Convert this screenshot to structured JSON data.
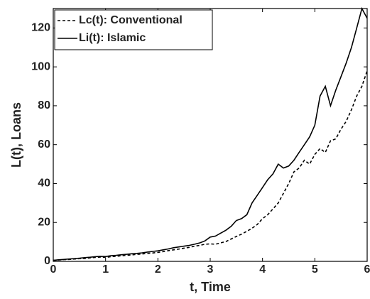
{
  "chart_data": {
    "type": "line",
    "xlabel": "t, Time",
    "ylabel": "L(t), Loans",
    "x": [
      0,
      0.1,
      0.2,
      0.3,
      0.4,
      0.5,
      0.6,
      0.7,
      0.8,
      0.9,
      1,
      1.1,
      1.2,
      1.3,
      1.4,
      1.5,
      1.6,
      1.7,
      1.8,
      1.9,
      2,
      2.1,
      2.2,
      2.3,
      2.4,
      2.5,
      2.6,
      2.7,
      2.8,
      2.9,
      3,
      3.1,
      3.2,
      3.3,
      3.4,
      3.5,
      3.6,
      3.7,
      3.8,
      3.9,
      4,
      4.1,
      4.2,
      4.3,
      4.4,
      4.5,
      4.6,
      4.7,
      4.8,
      4.9,
      5,
      5.1,
      5.2,
      5.3,
      5.4,
      5.5,
      5.6,
      5.7,
      5.8,
      5.9,
      6
    ],
    "series": [
      {
        "name": "Lc(t): Conventional",
        "color": "#000000",
        "dashed": true,
        "values": [
          0.5,
          0.7,
          0.9,
          1.0,
          1.2,
          1.4,
          1.5,
          1.8,
          2.0,
          2.2,
          2.0,
          2.4,
          2.6,
          2.9,
          3.1,
          3.3,
          3.6,
          3.8,
          4.1,
          4.3,
          4.6,
          5.0,
          5.5,
          5.9,
          6.3,
          6.8,
          7.2,
          7.8,
          8.2,
          8.8,
          9.0,
          8.8,
          9.5,
          10.2,
          11.5,
          12.8,
          14,
          15.5,
          17,
          19,
          22,
          24,
          27,
          30,
          35,
          40,
          46,
          48,
          52,
          50,
          55,
          58,
          56,
          62,
          63,
          68,
          72,
          78,
          85,
          90,
          98
        ]
      },
      {
        "name": "Li(t): Islamic",
        "color": "#000000",
        "dashed": false,
        "values": [
          0.5,
          0.8,
          1.0,
          1.2,
          1.4,
          1.6,
          1.9,
          2.1,
          2.4,
          2.6,
          2.5,
          2.9,
          3.1,
          3.4,
          3.6,
          3.9,
          4.1,
          4.4,
          4.8,
          5.1,
          5.4,
          5.9,
          6.4,
          7.0,
          7.4,
          7.8,
          8.2,
          8.8,
          9.5,
          10.5,
          12.5,
          13,
          14.5,
          16,
          18,
          21,
          22,
          24,
          30,
          34,
          38,
          42,
          45,
          50,
          48,
          49,
          52,
          56,
          60,
          64,
          70,
          85,
          90,
          80,
          88,
          95,
          102,
          110,
          120,
          130,
          125
        ]
      }
    ],
    "xlim": [
      0,
      6
    ],
    "xticks": [
      0,
      1,
      2,
      3,
      4,
      5,
      6
    ],
    "ylim": [
      0,
      130
    ],
    "yticks": [
      0,
      20,
      40,
      60,
      80,
      100,
      120
    ],
    "legend": "upper-left"
  }
}
